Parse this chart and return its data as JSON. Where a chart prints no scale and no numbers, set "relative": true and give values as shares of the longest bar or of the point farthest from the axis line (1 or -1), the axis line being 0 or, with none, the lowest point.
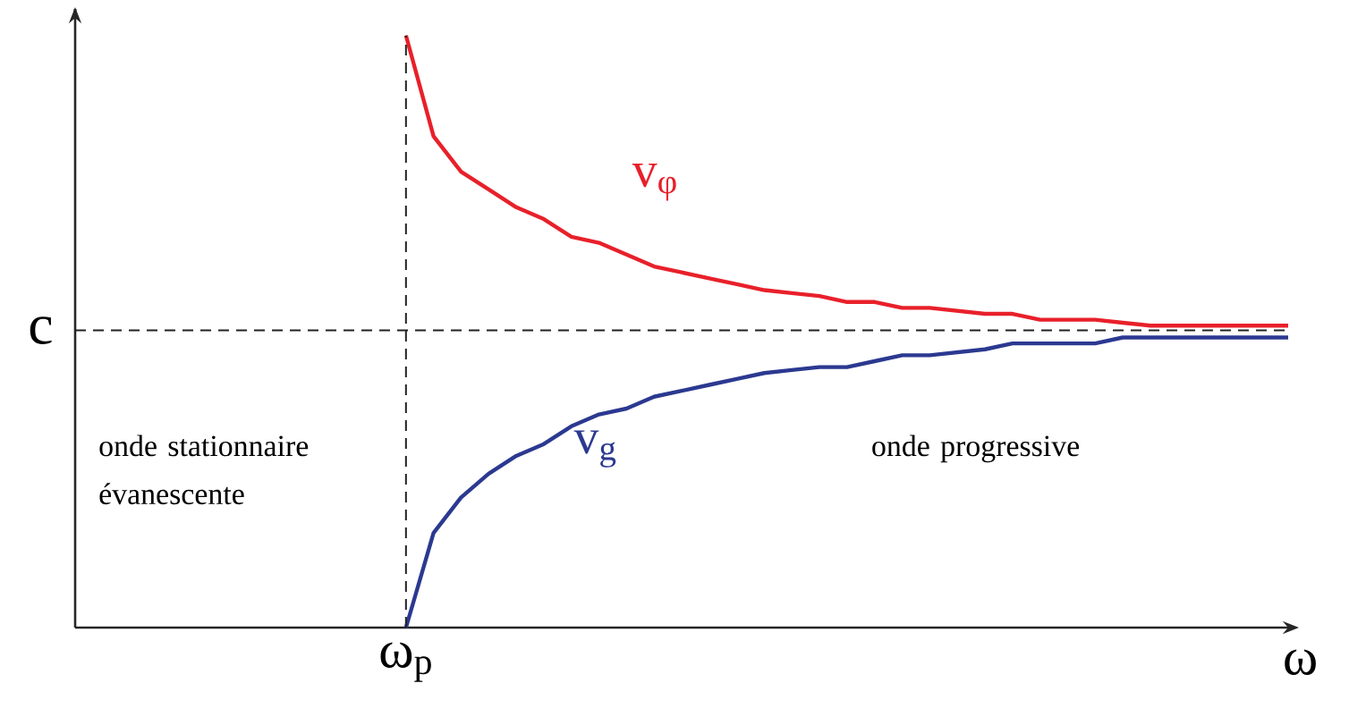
{
  "chart_data": {
    "type": "line",
    "relative": true,
    "xlabel": "ω",
    "categories": [
      null,
      null,
      null,
      null,
      null,
      null,
      null,
      null,
      null,
      null,
      null,
      null,
      null,
      null,
      null,
      null,
      null,
      null,
      null,
      null,
      null,
      null,
      null,
      null,
      null,
      null,
      null,
      null,
      null,
      null,
      null,
      null,
      null,
      null,
      null,
      null,
      null,
      null,
      null,
      null,
      null,
      null,
      null,
      null,
      null
    ],
    "series": [
      {
        "name": "v$_{φ}$",
        "color": "#e8202a",
        "values": [
          null,
          null,
          null,
          null,
          null,
          null,
          null,
          null,
          null,
          null,
          null,
          null,
          1.0,
          0.83,
          0.77,
          0.74,
          0.71,
          0.69,
          0.66,
          0.65,
          0.63,
          0.61,
          0.6,
          0.59,
          0.58,
          0.57,
          0.565,
          0.56,
          0.55,
          0.55,
          0.54,
          0.54,
          0.535,
          0.53,
          0.53,
          0.52,
          0.52,
          0.52,
          0.515,
          0.51,
          0.51,
          0.51,
          0.51,
          0.51,
          0.51
        ]
      },
      {
        "name": "v$_{g}$",
        "color": "#2b3990",
        "values": [
          null,
          null,
          null,
          null,
          null,
          null,
          null,
          null,
          null,
          null,
          null,
          null,
          0.0,
          0.16,
          0.22,
          0.26,
          0.29,
          0.31,
          0.34,
          0.36,
          0.37,
          0.39,
          0.4,
          0.41,
          0.42,
          0.43,
          0.435,
          0.44,
          0.44,
          0.45,
          0.46,
          0.46,
          0.465,
          0.47,
          0.48,
          0.48,
          0.48,
          0.48,
          0.49,
          0.49,
          0.49,
          0.49,
          0.49,
          0.49,
          0.49
        ]
      }
    ],
    "ref_lines": [
      {
        "axis": "y",
        "value": 0.502,
        "label": "c",
        "color": "#222222",
        "line_style": "dashed"
      },
      {
        "axis": "x",
        "label": "ω$_{p}$",
        "color": "#222222",
        "line_style": "dashed"
      }
    ],
    "annotations": [
      "onde stationnaire évanescente",
      "onde progressive"
    ],
    "marker": "none",
    "line_style": "solid",
    "grid": false
  }
}
